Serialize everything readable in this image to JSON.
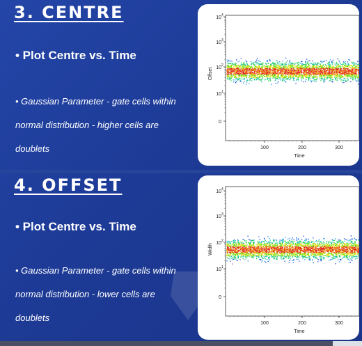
{
  "sections": [
    {
      "heading": "3. CENTRE",
      "bullet_title": "• Plot Centre vs. Time",
      "desc_lines": [
        "• Gaussian Parameter - gate cells within",
        "normal distribution  - higher cells are",
        "doublets"
      ],
      "plot": {
        "ylabel": "Offset",
        "xlabel": "Time",
        "yticks": [
          "10",
          "10",
          "10",
          "10",
          "0"
        ],
        "ytick_exps": [
          "4",
          "3",
          "2",
          "1",
          ""
        ],
        "xticks": [
          "100",
          "200",
          "300"
        ]
      }
    },
    {
      "heading": "4. OFFSET",
      "bullet_title": "• Plot Centre vs. Time",
      "desc_lines": [
        "• Gaussian Parameter - gate cells within",
        "normal distribution  - lower cells are",
        "doublets"
      ],
      "plot": {
        "ylabel": "Width",
        "xlabel": "Time",
        "yticks": [
          "10",
          "10",
          "10",
          "10",
          "0"
        ],
        "ytick_exps": [
          "4",
          "3",
          "2",
          "1",
          ""
        ],
        "xticks": [
          "100",
          "200",
          "300"
        ]
      }
    }
  ],
  "colors": {
    "background": "#1e3a8f",
    "density_high": "#e02020",
    "density_mid": "#20d020",
    "density_low": "#1020e0"
  }
}
